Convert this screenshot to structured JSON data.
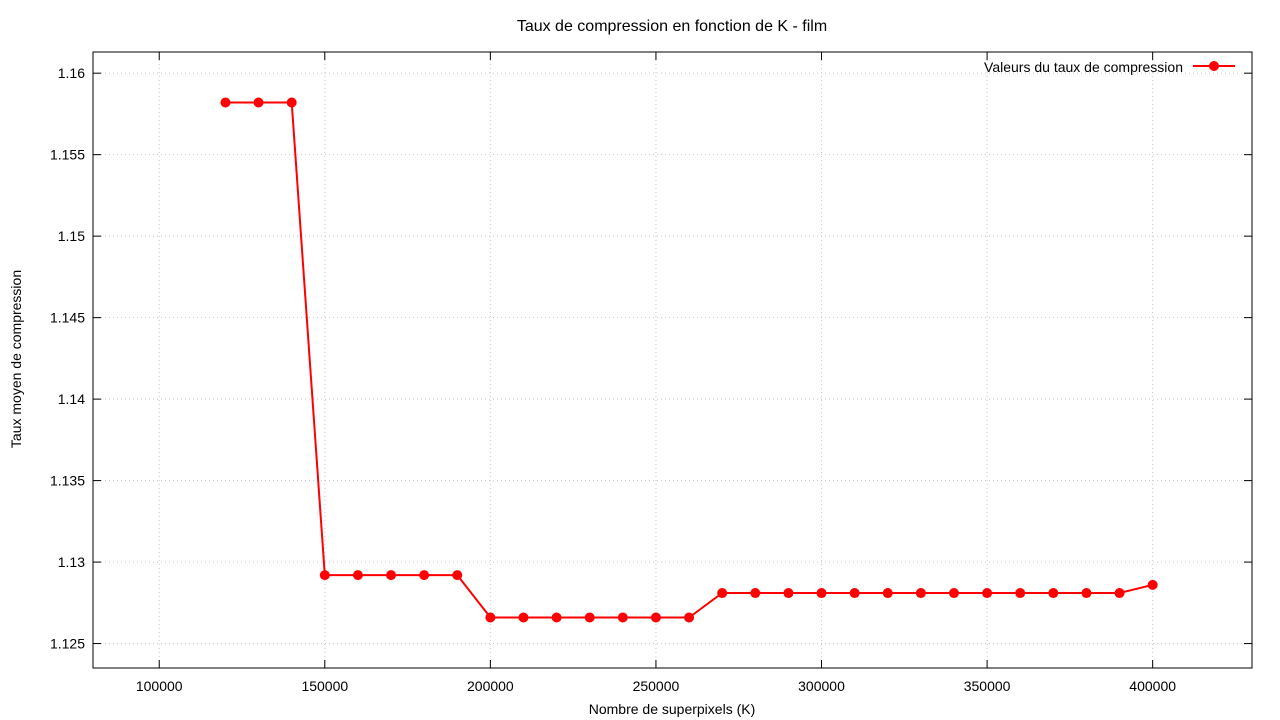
{
  "chart_data": {
    "type": "line",
    "title": "Taux de compression en fonction de K - film",
    "xlabel": "Nombre de superpixels (K)",
    "ylabel": "Taux moyen de compression",
    "xlim": [
      80000,
      430000
    ],
    "ylim": [
      1.1235,
      1.1613
    ],
    "xticks": [
      100000,
      150000,
      200000,
      250000,
      300000,
      350000,
      400000
    ],
    "yticks": [
      1.125,
      1.13,
      1.135,
      1.14,
      1.145,
      1.15,
      1.155,
      1.16
    ],
    "xtick_labels": [
      "100000",
      "150000",
      "200000",
      "250000",
      "300000",
      "350000",
      "400000"
    ],
    "ytick_labels": [
      "1.125",
      "1.13",
      "1.135",
      "1.14",
      "1.145",
      "1.15",
      "1.155",
      "1.16"
    ],
    "grid": true,
    "legend_position": "top-right",
    "series": [
      {
        "name": "Valeurs du taux de compression",
        "color": "#ff0000",
        "x": [
          120000,
          130000,
          140000,
          150000,
          160000,
          170000,
          180000,
          190000,
          200000,
          210000,
          220000,
          230000,
          240000,
          250000,
          260000,
          270000,
          280000,
          290000,
          300000,
          310000,
          320000,
          330000,
          340000,
          350000,
          360000,
          370000,
          380000,
          390000,
          400000
        ],
        "y": [
          1.1582,
          1.1582,
          1.1582,
          1.1292,
          1.1292,
          1.1292,
          1.1292,
          1.1292,
          1.1266,
          1.1266,
          1.1266,
          1.1266,
          1.1266,
          1.1266,
          1.1266,
          1.1281,
          1.1281,
          1.1281,
          1.1281,
          1.1281,
          1.1281,
          1.1281,
          1.1281,
          1.1281,
          1.1281,
          1.1281,
          1.1281,
          1.1281,
          1.1286
        ]
      }
    ]
  }
}
